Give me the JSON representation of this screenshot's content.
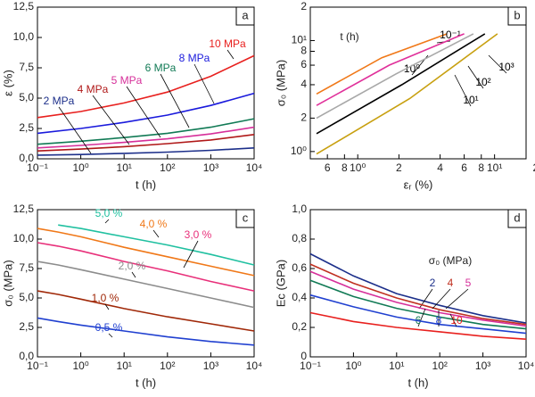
{
  "chart_data": [
    {
      "type": "line",
      "panel": "a",
      "xlabel": "t (h)",
      "ylabel": "ε (%)",
      "xlog": true,
      "xlim": [
        0.1,
        10000
      ],
      "ylim": [
        0,
        12.5
      ],
      "xticks": [
        {
          "value": 0.1,
          "label": "10⁻¹"
        },
        {
          "value": 1,
          "label": "10⁰"
        },
        {
          "value": 10,
          "label": "10¹"
        },
        {
          "value": 100,
          "label": "10²"
        },
        {
          "value": 1000,
          "label": "10³"
        },
        {
          "value": 10000,
          "label": "10⁴"
        }
      ],
      "yticks": [
        {
          "value": 0,
          "label": "0,0"
        },
        {
          "value": 2.5,
          "label": "2,5"
        },
        {
          "value": 5,
          "label": "5,0"
        },
        {
          "value": 7.5,
          "label": "7,5"
        },
        {
          "value": 10,
          "label": "10,0"
        },
        {
          "value": 12.5,
          "label": "12,5"
        }
      ],
      "x": [
        0.1,
        1,
        10,
        100,
        1000,
        10000
      ],
      "series": [
        {
          "name": "10 MPa",
          "color": "#e8201e",
          "values": [
            3.4,
            3.9,
            4.6,
            5.5,
            6.8,
            8.5
          ]
        },
        {
          "name": "8 MPa",
          "color": "#1a1adc",
          "values": [
            2.1,
            2.5,
            3.0,
            3.6,
            4.4,
            5.4
          ]
        },
        {
          "name": "6 MPa",
          "color": "#117a55",
          "values": [
            1.2,
            1.45,
            1.75,
            2.1,
            2.6,
            3.3
          ]
        },
        {
          "name": "5 MPa",
          "color": "#d62f9a",
          "values": [
            0.9,
            1.1,
            1.35,
            1.65,
            2.05,
            2.6
          ]
        },
        {
          "name": "4 MPa",
          "color": "#b01818",
          "values": [
            0.65,
            0.8,
            1.0,
            1.25,
            1.55,
            2.0
          ]
        },
        {
          "name": "2 MPa",
          "color": "#1c2f8a",
          "values": [
            0.3,
            0.35,
            0.45,
            0.55,
            0.7,
            0.9
          ]
        }
      ]
    },
    {
      "type": "line",
      "panel": "b",
      "xlabel": "εᵣ (%)",
      "ylabel": "σ₀ (MPa)",
      "legend_title": "t (h)",
      "xlog": true,
      "ylog": true,
      "xlim": [
        0.45,
        17
      ],
      "ylim": [
        0.86,
        20
      ],
      "xticks": [
        {
          "value": 0.6,
          "label": "6"
        },
        {
          "value": 0.8,
          "label": "8"
        },
        {
          "value": 1,
          "label": "10⁰"
        },
        2,
        4,
        6,
        8,
        {
          "value": 10,
          "label": "10¹"
        },
        {
          "value": 20,
          "label": "2"
        }
      ],
      "yticks": [
        {
          "value": 1,
          "label": "10⁰"
        },
        2,
        4,
        6,
        8,
        {
          "value": 10,
          "label": "10¹"
        },
        {
          "value": 20,
          "label": "2"
        }
      ],
      "series": [
        {
          "name": "10⁻¹",
          "color": "#f07818",
          "x": [
            0.5,
            1.5,
            4.5
          ],
          "values": [
            3.3,
            7.0,
            11.5
          ]
        },
        {
          "name": "10⁰",
          "color": "#e0309a",
          "x": [
            0.5,
            1.7,
            6
          ],
          "values": [
            2.6,
            6.0,
            11.5
          ]
        },
        {
          "name": "10¹",
          "color": "#a8a8a8",
          "x": [
            0.5,
            1.9,
            7
          ],
          "values": [
            2.0,
            5.0,
            11.5
          ]
        },
        {
          "name": "10²",
          "color": "#000000",
          "x": [
            0.5,
            2.1,
            8.5
          ],
          "values": [
            1.45,
            4.0,
            11.5
          ]
        },
        {
          "name": "10³",
          "color": "#c8a010",
          "x": [
            0.5,
            2.4,
            10.5
          ],
          "values": [
            0.95,
            3.0,
            11.5
          ]
        }
      ]
    },
    {
      "type": "line",
      "panel": "c",
      "xlabel": "t (h)",
      "ylabel": "σ₀ (MPa)",
      "xlog": true,
      "xlim": [
        0.1,
        10000
      ],
      "ylim": [
        0,
        12.5
      ],
      "xticks": [
        {
          "value": 0.1,
          "label": "10⁻¹"
        },
        {
          "value": 1,
          "label": "10⁰"
        },
        {
          "value": 10,
          "label": "10¹"
        },
        {
          "value": 100,
          "label": "10²"
        },
        {
          "value": 1000,
          "label": "10³"
        },
        {
          "value": 10000,
          "label": "10⁴"
        }
      ],
      "yticks": [
        {
          "value": 0,
          "label": "0,0"
        },
        {
          "value": 2.5,
          "label": "2,5"
        },
        {
          "value": 5,
          "label": "5,0"
        },
        {
          "value": 7.5,
          "label": "7,5"
        },
        {
          "value": 10,
          "label": "10,0"
        },
        {
          "value": 12.5,
          "label": "12,5"
        }
      ],
      "x": [
        0.1,
        0.3,
        1,
        10,
        100,
        1000,
        10000
      ],
      "series": [
        {
          "name": "5,0 %",
          "color": "#20c0a0",
          "values": [
            null,
            11.2,
            10.9,
            10.2,
            9.5,
            8.7,
            7.8
          ]
        },
        {
          "name": "4,0 %",
          "color": "#f07818",
          "values": [
            10.9,
            10.6,
            10.2,
            9.3,
            8.5,
            7.7,
            6.9
          ]
        },
        {
          "name": "3,0 %",
          "color": "#e8307a",
          "values": [
            9.7,
            9.4,
            9.0,
            8.1,
            7.3,
            6.4,
            5.6
          ]
        },
        {
          "name": "2,0 %",
          "color": "#8c8c8c",
          "values": [
            8.1,
            7.8,
            7.4,
            6.6,
            5.8,
            5.0,
            4.2
          ]
        },
        {
          "name": "1,0 %",
          "color": "#a02808",
          "values": [
            5.6,
            5.3,
            4.9,
            4.1,
            3.4,
            2.8,
            2.2
          ]
        },
        {
          "name": "0,5 %",
          "color": "#2040d0",
          "values": [
            3.3,
            3.0,
            2.7,
            2.2,
            1.7,
            1.3,
            1.0
          ]
        }
      ]
    },
    {
      "type": "line",
      "panel": "d",
      "xlabel": "t (h)",
      "ylabel": "Ec (GPa)",
      "legend_title": "σ₀ (MPa)",
      "xlog": true,
      "xlim": [
        0.1,
        10000
      ],
      "ylim": [
        0,
        1
      ],
      "xticks": [
        {
          "value": 0.1,
          "label": "10⁻¹"
        },
        {
          "value": 1,
          "label": "10⁰"
        },
        {
          "value": 10,
          "label": "10¹"
        },
        {
          "value": 100,
          "label": "10²"
        },
        {
          "value": 1000,
          "label": "10³"
        },
        {
          "value": 10000,
          "label": "10⁴"
        }
      ],
      "yticks": [
        0,
        {
          "value": 0.2,
          "label": "0,2"
        },
        {
          "value": 0.4,
          "label": "0,4"
        },
        {
          "value": 0.6,
          "label": "0,6"
        },
        {
          "value": 0.8,
          "label": "0,8"
        },
        {
          "value": 1,
          "label": "1,0"
        }
      ],
      "x": [
        0.1,
        1,
        10,
        100,
        1000,
        10000
      ],
      "series": [
        {
          "name": "2",
          "color": "#1c2f8a",
          "values": [
            0.7,
            0.55,
            0.43,
            0.35,
            0.28,
            0.23
          ]
        },
        {
          "name": "4",
          "color": "#c03020",
          "values": [
            0.63,
            0.5,
            0.4,
            0.32,
            0.26,
            0.22
          ]
        },
        {
          "name": "5",
          "color": "#d62f9a",
          "values": [
            0.58,
            0.46,
            0.37,
            0.3,
            0.25,
            0.21
          ]
        },
        {
          "name": "6",
          "color": "#117a55",
          "values": [
            0.52,
            0.41,
            0.33,
            0.27,
            0.22,
            0.19
          ]
        },
        {
          "name": "8",
          "color": "#2040d0",
          "values": [
            0.42,
            0.34,
            0.27,
            0.22,
            0.19,
            0.16
          ]
        },
        {
          "name": "10",
          "color": "#e8201e",
          "values": [
            0.3,
            0.24,
            0.2,
            0.17,
            0.14,
            0.12
          ]
        }
      ]
    }
  ]
}
